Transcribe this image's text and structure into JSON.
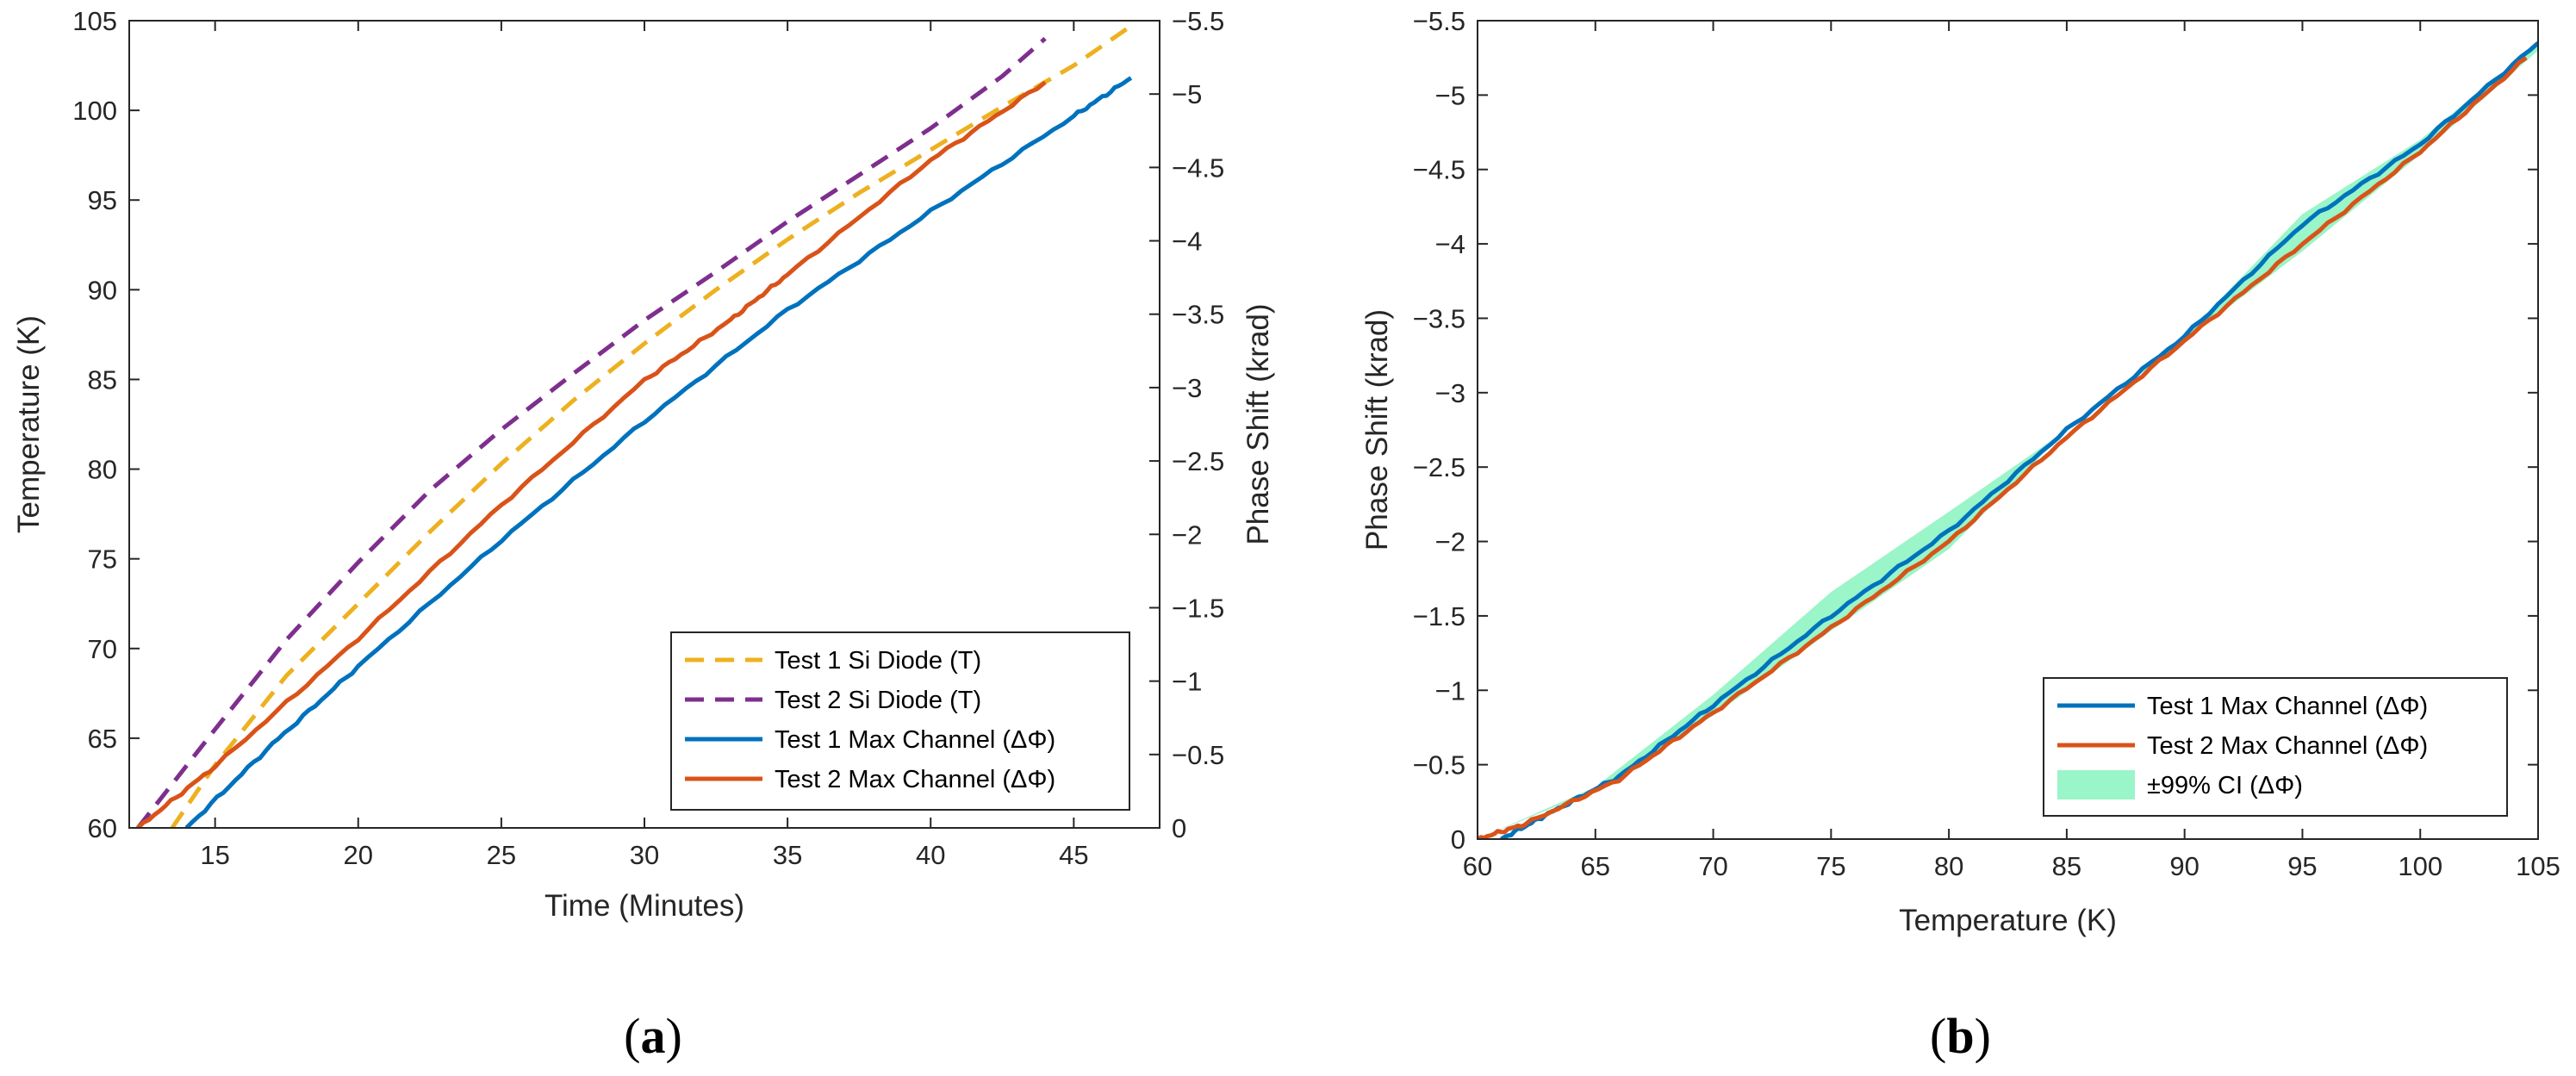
{
  "chart_data": [
    {
      "panel": "a",
      "type": "line",
      "caption": {
        "open": "(",
        "letter": "a",
        "close": ")"
      },
      "xlabel": "Time (Minutes)",
      "ylabel_left": "Temperature (K)",
      "ylabel_right": "Phase Shift (krad)",
      "xlim": [
        12,
        48
      ],
      "ylim_left": [
        60,
        105
      ],
      "ylim_right": [
        0,
        -5.5
      ],
      "x_ticks": [
        15,
        20,
        25,
        30,
        35,
        40,
        45
      ],
      "y_left_ticks": [
        60,
        65,
        70,
        75,
        80,
        85,
        90,
        95,
        100,
        105
      ],
      "y_right_ticks": [
        0,
        -0.5,
        -1,
        -1.5,
        -2,
        -2.5,
        -3,
        -3.5,
        -4,
        -4.5,
        -5,
        -5.5
      ],
      "legend": [
        "Test 1 Si Diode (T)",
        "Test 2 Si Diode (T)",
        "Test 1 Max Channel (ΔΦ)",
        "Test 2 Max Channel (ΔΦ)"
      ],
      "series": [
        {
          "name": "Test 1 Si Diode (T)",
          "axis": "left",
          "color": "#EDB120",
          "dash": true,
          "points": [
            [
              13.5,
              60
            ],
            [
              15,
              63.5
            ],
            [
              17.5,
              68.5
            ],
            [
              20,
              72.5
            ],
            [
              22.5,
              76.5
            ],
            [
              25,
              80.3
            ],
            [
              27.5,
              83.8
            ],
            [
              30,
              87
            ],
            [
              32.5,
              90
            ],
            [
              35,
              92.8
            ],
            [
              37.5,
              95.4
            ],
            [
              40,
              97.8
            ],
            [
              42.5,
              100.2
            ],
            [
              45,
              102.5
            ],
            [
              47,
              104.7
            ]
          ]
        },
        {
          "name": "Test 2 Si Diode (T)",
          "axis": "left",
          "color": "#7E2F8E",
          "dash": true,
          "points": [
            [
              12.3,
              60
            ],
            [
              15,
              65.5
            ],
            [
              17.5,
              70.5
            ],
            [
              20,
              74.8
            ],
            [
              22.5,
              78.8
            ],
            [
              25,
              82.2
            ],
            [
              27.5,
              85.3
            ],
            [
              30,
              88.3
            ],
            [
              32.5,
              91
            ],
            [
              35,
              93.8
            ],
            [
              37.5,
              96.4
            ],
            [
              40,
              99
            ],
            [
              42.5,
              101.9
            ],
            [
              44,
              104
            ]
          ]
        },
        {
          "name": "Test 1 Max Channel (ΔΦ)",
          "axis": "right",
          "color": "#0072BD",
          "dash": false,
          "points": [
            [
              14,
              0
            ],
            [
              17,
              -0.57
            ],
            [
              20,
              -1.1
            ],
            [
              25,
              -1.96
            ],
            [
              30,
              -2.77
            ],
            [
              35,
              -3.53
            ],
            [
              40,
              -4.2
            ],
            [
              45,
              -4.85
            ],
            [
              47,
              -5.11
            ]
          ]
        },
        {
          "name": "Test 2 Max Channel (ΔΦ)",
          "axis": "right",
          "color": "#D95319",
          "dash": false,
          "points": [
            [
              12.3,
              0
            ],
            [
              15,
              -0.42
            ],
            [
              20,
              -1.29
            ],
            [
              25,
              -2.2
            ],
            [
              30,
              -3.05
            ],
            [
              33,
              -3.46
            ],
            [
              35,
              -3.77
            ],
            [
              40,
              -4.55
            ],
            [
              44,
              -5.08
            ]
          ]
        }
      ]
    },
    {
      "panel": "b",
      "type": "line",
      "caption": {
        "open": "(",
        "letter": "b",
        "close": ")"
      },
      "xlabel": "Temperature (K)",
      "ylabel": "Phase Shift (krad)",
      "xlim": [
        60,
        105
      ],
      "ylim": [
        0,
        -5.5
      ],
      "x_ticks": [
        60,
        65,
        70,
        75,
        80,
        85,
        90,
        95,
        100,
        105
      ],
      "y_ticks": [
        0,
        -0.5,
        -1,
        -1.5,
        -2,
        -2.5,
        -3,
        -3.5,
        -4,
        -4.5,
        -5,
        -5.5
      ],
      "legend": [
        "Test 1 Max Channel (ΔΦ)",
        "Test 2 Max Channel (ΔΦ)",
        "±99% CI (ΔΦ)"
      ],
      "ci_band": {
        "name": "±99% CI (ΔΦ)",
        "color": "#9AF5C8",
        "upper": [
          [
            60,
            0
          ],
          [
            65,
            -0.35
          ],
          [
            70,
            -0.97
          ],
          [
            75,
            -1.66
          ],
          [
            80,
            -2.2
          ],
          [
            85,
            -2.75
          ],
          [
            90,
            -3.38
          ],
          [
            95,
            -4.2
          ],
          [
            100,
            -4.7
          ],
          [
            105,
            -5.35
          ]
        ],
        "lower": [
          [
            60,
            0
          ],
          [
            65,
            -0.33
          ],
          [
            70,
            -0.83
          ],
          [
            75,
            -1.4
          ],
          [
            80,
            -1.95
          ],
          [
            85,
            -2.75
          ],
          [
            90,
            -3.35
          ],
          [
            95,
            -3.95
          ],
          [
            100,
            -4.6
          ],
          [
            105,
            -5.3
          ]
        ]
      },
      "series": [
        {
          "name": "Test 1 Max Channel (ΔΦ)",
          "color": "#0072BD",
          "points": [
            [
              61,
              0
            ],
            [
              63,
              -0.17
            ],
            [
              66,
              -0.42
            ],
            [
              70,
              -0.9
            ],
            [
              75,
              -1.5
            ],
            [
              80,
              -2.07
            ],
            [
              85,
              -2.75
            ],
            [
              90,
              -3.38
            ],
            [
              95,
              -4.13
            ],
            [
              100,
              -4.67
            ],
            [
              105,
              -5.35
            ]
          ]
        },
        {
          "name": "Test 2 Max Channel (ΔΦ)",
          "color": "#D95319",
          "points": [
            [
              60,
              0
            ],
            [
              62,
              -0.1
            ],
            [
              66,
              -0.4
            ],
            [
              70,
              -0.85
            ],
            [
              75,
              -1.42
            ],
            [
              80,
              -2.0
            ],
            [
              85,
              -2.7
            ],
            [
              90,
              -3.35
            ],
            [
              95,
              -4.0
            ],
            [
              100,
              -4.62
            ],
            [
              104.5,
              -5.25
            ]
          ]
        }
      ]
    }
  ]
}
